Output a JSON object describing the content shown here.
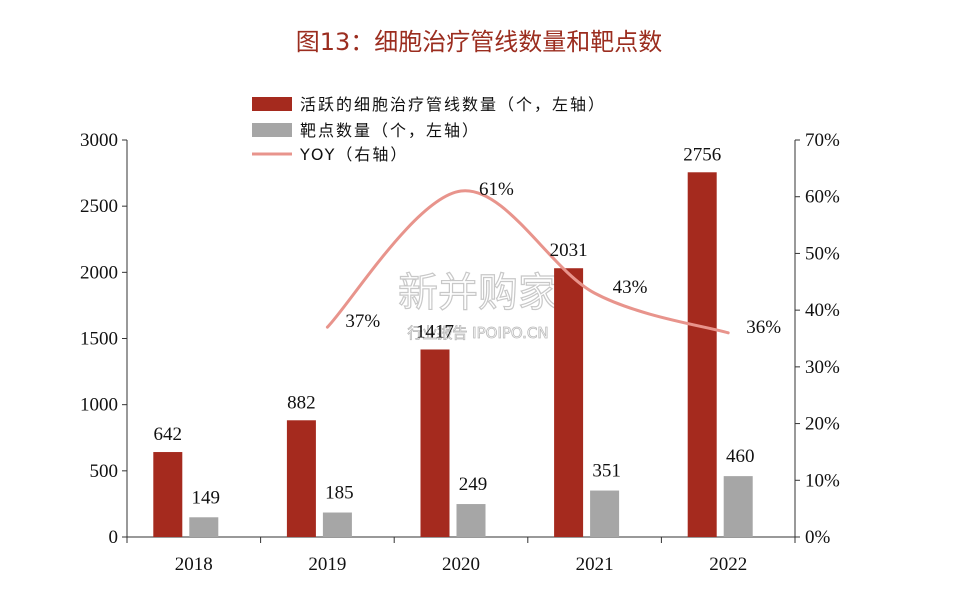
{
  "title": "图13：细胞治疗管线数量和靶点数",
  "watermark": {
    "main": "新并购家",
    "sub": "行业报告 IPOIPO.CN"
  },
  "colors": {
    "pipeline": "#a52a1e",
    "targets": "#a6a6a6",
    "yoy": "#e8948c",
    "title": "#9b2d1f"
  },
  "chart_data": {
    "type": "bar",
    "categories": [
      "2018",
      "2019",
      "2020",
      "2021",
      "2022"
    ],
    "series": [
      {
        "name": "活跃的细胞治疗管线数量（个，左轴）",
        "kind": "bar",
        "axis": "left",
        "values": [
          642,
          882,
          1417,
          2031,
          2756
        ],
        "labels": [
          "642",
          "882",
          "1417",
          "2031",
          "2756"
        ]
      },
      {
        "name": "靶点数量（个，左轴）",
        "kind": "bar",
        "axis": "left",
        "values": [
          149,
          185,
          249,
          351,
          460
        ],
        "labels": [
          "149",
          "185",
          "249",
          "351",
          "460"
        ]
      },
      {
        "name": "YOY（右轴）",
        "kind": "line",
        "axis": "right",
        "x": [
          "2019",
          "2020",
          "2021",
          "2022"
        ],
        "values": [
          37,
          61,
          43,
          36
        ],
        "labels": [
          "37%",
          "61%",
          "43%",
          "36%"
        ]
      }
    ],
    "yleft": {
      "ticks": [
        "0",
        "500",
        "1000",
        "1500",
        "2000",
        "2500",
        "3000"
      ],
      "ylim": [
        0,
        3000
      ]
    },
    "yright": {
      "ticks": [
        "0%",
        "10%",
        "20%",
        "30%",
        "40%",
        "50%",
        "60%",
        "70%"
      ],
      "ylim": [
        0,
        70
      ]
    },
    "legend_position": "top-center",
    "grid": false
  }
}
